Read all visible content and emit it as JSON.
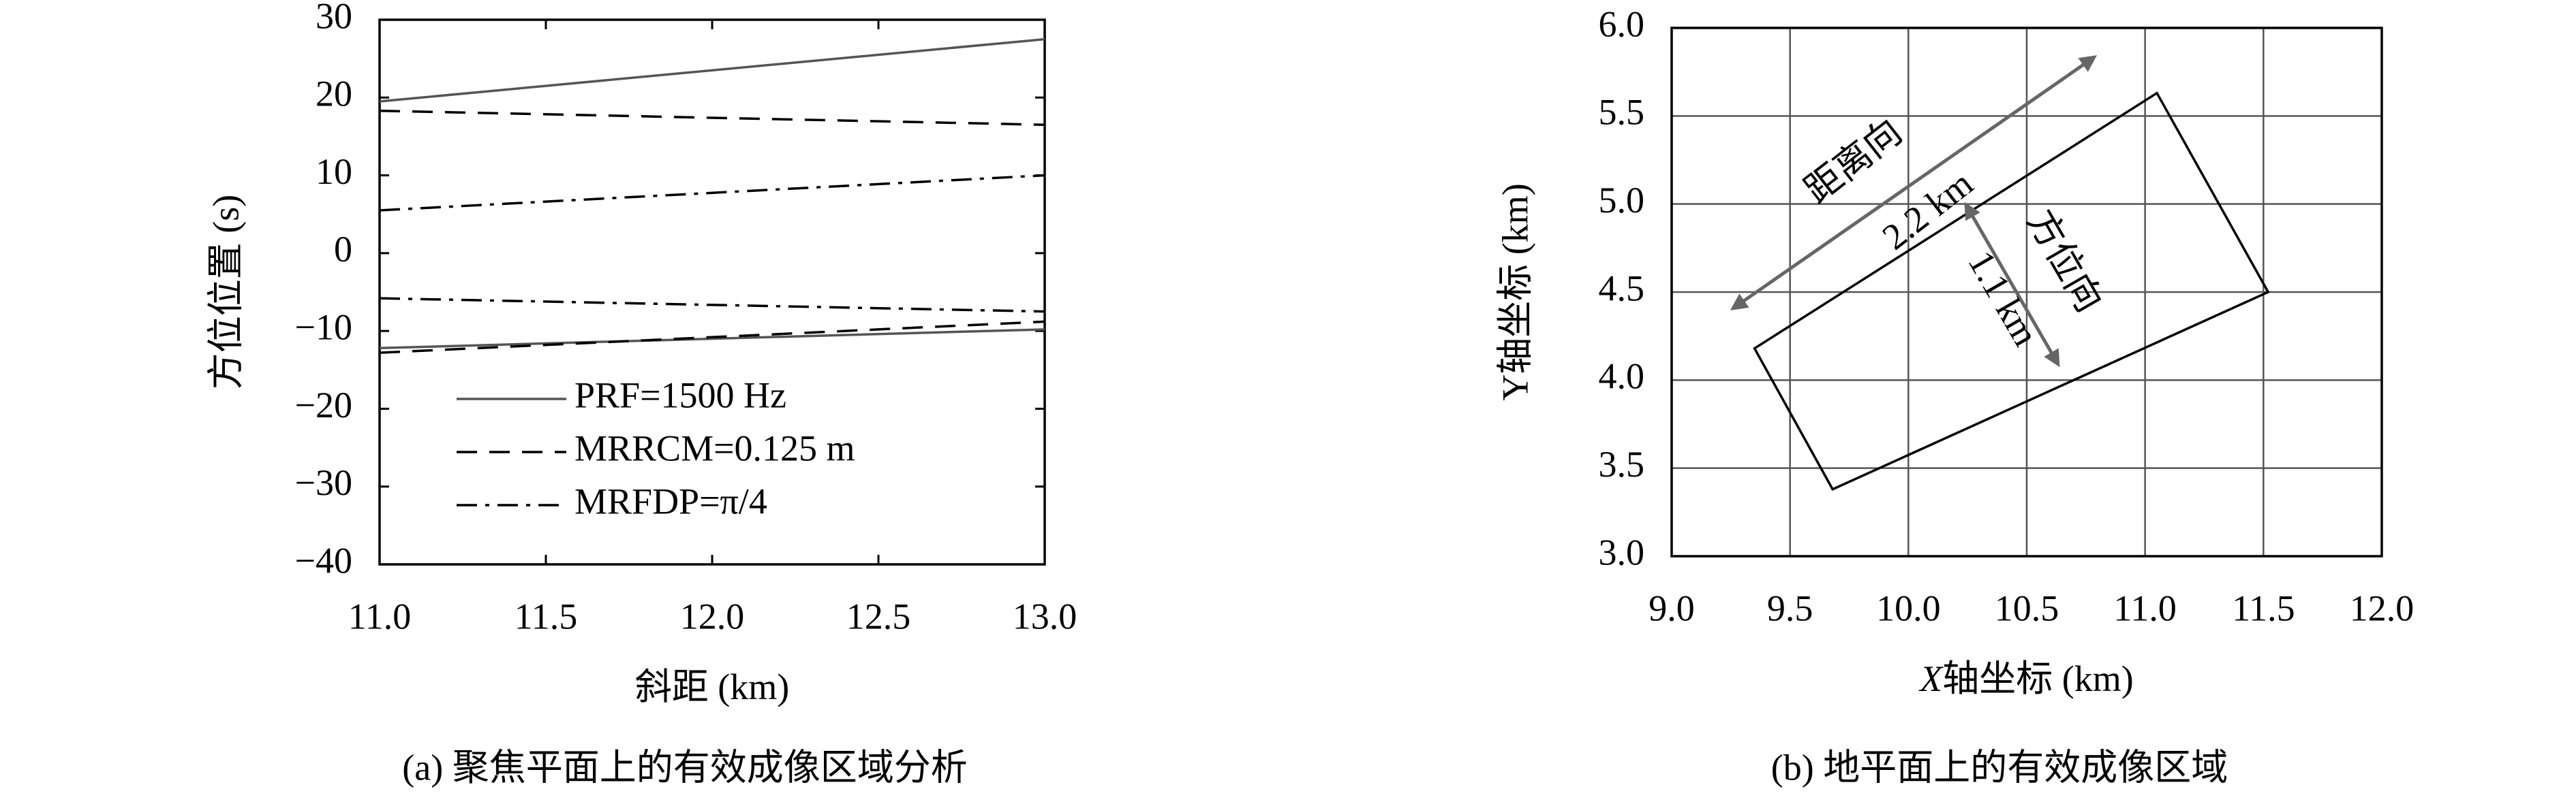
{
  "chart_data": [
    {
      "type": "line",
      "x_label": "斜距 (km)",
      "y_label": "方位位置 (s)",
      "caption": "(a) 聚焦平面上的有效成像区域分析",
      "x": [
        11,
        13
      ],
      "xlim": [
        11,
        13
      ],
      "ylim": [
        -40,
        30
      ],
      "xticks": [
        {
          "value": 11,
          "label": "11.0"
        },
        {
          "value": 11.5,
          "label": "11.5"
        },
        {
          "value": 12,
          "label": "12.0"
        },
        {
          "value": 12.5,
          "label": "12.5"
        },
        {
          "value": 13,
          "label": "13.0"
        }
      ],
      "yticks": [
        -40,
        -30,
        -20,
        -10,
        0,
        10,
        20,
        30
      ],
      "grid": false,
      "legend": "lower left",
      "series": [
        {
          "name": "PRF=1500 Hz",
          "color": "#555555",
          "dash": "solid",
          "lines": [
            [
              19.5,
              27.5
            ],
            [
              -12.2,
              -9.8
            ]
          ]
        },
        {
          "name": "MRRCM=0.125 m",
          "color": "#000000",
          "dash": "dashed",
          "lines": [
            [
              18.3,
              16.5
            ],
            [
              -12.8,
              -8.8
            ]
          ]
        },
        {
          "name": "MRFDP=π/4",
          "color": "#000000",
          "dash": "dashdot",
          "lines": [
            [
              5.5,
              10
            ],
            [
              -5.8,
              -7.5
            ]
          ]
        }
      ]
    },
    {
      "type": "polygon",
      "x_label_italic": "X",
      "x_label": "轴坐标 (km)",
      "y_label": "Y轴坐标 (km)",
      "caption": "(b) 地平面上的有效成像区域",
      "xlim": [
        9,
        12
      ],
      "ylim": [
        3,
        6
      ],
      "xticks": [
        {
          "value": 9,
          "label": "9.0"
        },
        {
          "value": 9.5,
          "label": "9.5"
        },
        {
          "value": 10,
          "label": "10.0"
        },
        {
          "value": 10.5,
          "label": "10.5"
        },
        {
          "value": 11,
          "label": "11.0"
        },
        {
          "value": 11.5,
          "label": "11.5"
        },
        {
          "value": 12,
          "label": "12.0"
        }
      ],
      "yticks": [
        {
          "value": 3,
          "label": "3.0"
        },
        {
          "value": 3.5,
          "label": "3.5"
        },
        {
          "value": 4,
          "label": "4.0"
        },
        {
          "value": 4.5,
          "label": "4.5"
        },
        {
          "value": 5,
          "label": "5.0"
        },
        {
          "value": 5.5,
          "label": "5.5"
        },
        {
          "value": 6,
          "label": "6.0"
        }
      ],
      "grid": true,
      "color": "#000000",
      "x": [
        9.35,
        11.05,
        11.52,
        9.68
      ],
      "values": [
        4.18,
        5.63,
        4.5,
        3.38
      ],
      "annotations": [
        "距离向",
        "2.2 km",
        "方位向",
        "1.1 km"
      ]
    }
  ]
}
